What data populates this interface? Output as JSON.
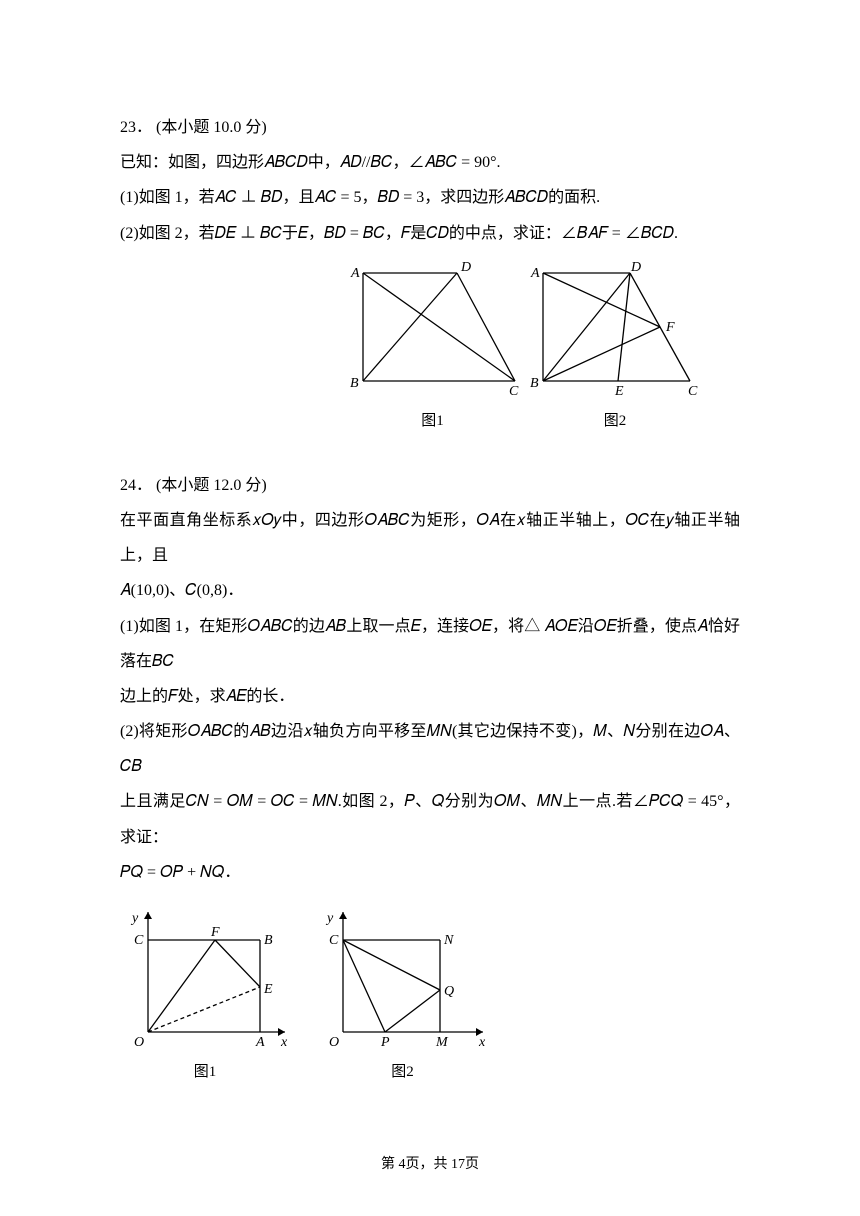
{
  "page": {
    "current": "4",
    "total": "17",
    "footer_prefix": "第 ",
    "footer_mid": "页，共 ",
    "footer_suffix": "页"
  },
  "q23": {
    "number": "23",
    "header_rest": "． (本小题 10.0 分)",
    "intro": "已知：如图，四边形𝐴𝐵𝐶𝐷中，𝐴𝐷//𝐵𝐶，∠𝐴𝐵𝐶 = 90°.",
    "p1": "(1)如图 1，若𝐴𝐶 ⊥ 𝐵𝐷，且𝐴𝐶 = 5，𝐵𝐷 = 3，求四边形𝐴𝐵𝐶𝐷的面积.",
    "p2": "(2)如图 2，若𝐷𝐸 ⊥ 𝐵𝐶于𝐸，𝐵𝐷 = 𝐵𝐶，𝐹是𝐶𝐷的中点，求证：∠𝐵𝐴𝐹 = ∠𝐵𝐶𝐷.",
    "fig1_caption": "图1",
    "fig2_caption": "图2",
    "fig1": {
      "width": 175,
      "height": 140,
      "A": [
        18,
        12
      ],
      "D": [
        112,
        12
      ],
      "B": [
        18,
        120
      ],
      "C": [
        170,
        120
      ],
      "labels": {
        "A": "A",
        "D": "D",
        "B": "B",
        "C": "C"
      },
      "stroke": "#000000",
      "stroke_width": 1.3,
      "font_size": 14
    },
    "fig2": {
      "width": 170,
      "height": 140,
      "A": [
        13,
        12
      ],
      "D": [
        100,
        12
      ],
      "B": [
        13,
        120
      ],
      "E": [
        88,
        120
      ],
      "C": [
        160,
        120
      ],
      "labels": {
        "A": "A",
        "D": "D",
        "B": "B",
        "E": "E",
        "C": "C",
        "F": "F"
      },
      "stroke": "#000000",
      "stroke_width": 1.3,
      "font_size": 14
    }
  },
  "q24": {
    "number": "24",
    "header_rest": "． (本小题 12.0 分)",
    "intro1": "在平面直角坐标系𝑥𝑂𝑦中，四边形𝑂𝐴𝐵𝐶为矩形，𝑂𝐴在𝑥轴正半轴上，𝑂𝐶在𝑦轴正半轴上，且",
    "intro2": "𝐴(10,0)、𝐶(0,8)．",
    "p1a": "(1)如图 1，在矩形𝑂𝐴𝐵𝐶的边𝐴𝐵上取一点𝐸，连接𝑂𝐸，将△ 𝐴𝑂𝐸沿𝑂𝐸折叠，使点𝐴恰好落在𝐵𝐶",
    "p1b": "边上的𝐹处，求𝐴𝐸的长．",
    "p2a": "(2)将矩形𝑂𝐴𝐵𝐶的𝐴𝐵边沿𝑥轴负方向平移至𝑀𝑁(其它边保持不变)，𝑀、𝑁分别在边𝑂𝐴、𝐶𝐵",
    "p2b": "上且满足𝐶𝑁 = 𝑂𝑀 = 𝑂𝐶 = 𝑀𝑁.如图 2，𝑃、𝑄分别为𝑂𝑀、𝑀𝑁上一点.若∠𝑃𝐶𝑄 = 45°，求证：",
    "p2c": "𝑃𝑄 = 𝑂𝑃 + 𝑁𝑄．",
    "fig1_caption": "图1",
    "fig2_caption": "图2",
    "fig1": {
      "width": 170,
      "height": 150,
      "O": [
        28,
        130
      ],
      "A": [
        140,
        130
      ],
      "B": [
        140,
        38
      ],
      "C": [
        28,
        38
      ],
      "F": [
        95,
        38
      ],
      "E": [
        140,
        85
      ],
      "axis_arrow_x": [
        165,
        130
      ],
      "axis_arrow_y": [
        28,
        10
      ],
      "labels": {
        "y": "y",
        "C": "C",
        "F": "F",
        "B": "B",
        "E": "E",
        "O": "O",
        "A": "A",
        "x": "x"
      },
      "stroke": "#000000",
      "stroke_width": 1.3,
      "dash": "4,3",
      "font_size": 14
    },
    "fig2": {
      "width": 175,
      "height": 150,
      "O": [
        28,
        130
      ],
      "M": [
        125,
        130
      ],
      "N": [
        125,
        38
      ],
      "C": [
        28,
        38
      ],
      "P": [
        70,
        130
      ],
      "Q": [
        125,
        88
      ],
      "axis_arrow_x": [
        168,
        130
      ],
      "axis_arrow_y": [
        28,
        10
      ],
      "labels": {
        "y": "y",
        "C": "C",
        "N": "N",
        "Q": "Q",
        "O": "O",
        "P": "P",
        "M": "M",
        "x": "x"
      },
      "stroke": "#000000",
      "stroke_width": 1.3,
      "font_size": 14
    }
  }
}
